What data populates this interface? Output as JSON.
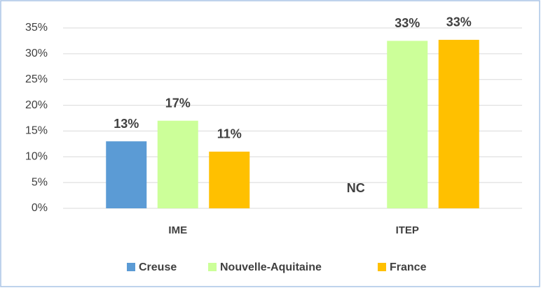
{
  "chart_data": {
    "type": "bar",
    "categories": [
      "IME",
      "ITEP"
    ],
    "series": [
      {
        "name": "Creuse",
        "color": "#5b9bd5",
        "values": [
          13,
          null
        ],
        "value_labels": [
          "13%",
          "NC"
        ]
      },
      {
        "name": "Nouvelle-Aquitaine",
        "color": "#ccff99",
        "values": [
          17,
          32.5
        ],
        "value_labels": [
          "17%",
          "33%"
        ]
      },
      {
        "name": "France",
        "color": "#ffc000",
        "values": [
          11,
          32.7
        ],
        "value_labels": [
          "11%",
          "33%"
        ]
      }
    ],
    "ylim": [
      0,
      35
    ],
    "yticks": [
      {
        "value": 0,
        "label": "0%"
      },
      {
        "value": 5,
        "label": "5%"
      },
      {
        "value": 10,
        "label": "10%"
      },
      {
        "value": 15,
        "label": "15%"
      },
      {
        "value": 20,
        "label": "20%"
      },
      {
        "value": 25,
        "label": "25%"
      },
      {
        "value": 30,
        "label": "30%"
      },
      {
        "value": 35,
        "label": "35%"
      }
    ],
    "grid": true,
    "legend": "bottom"
  }
}
